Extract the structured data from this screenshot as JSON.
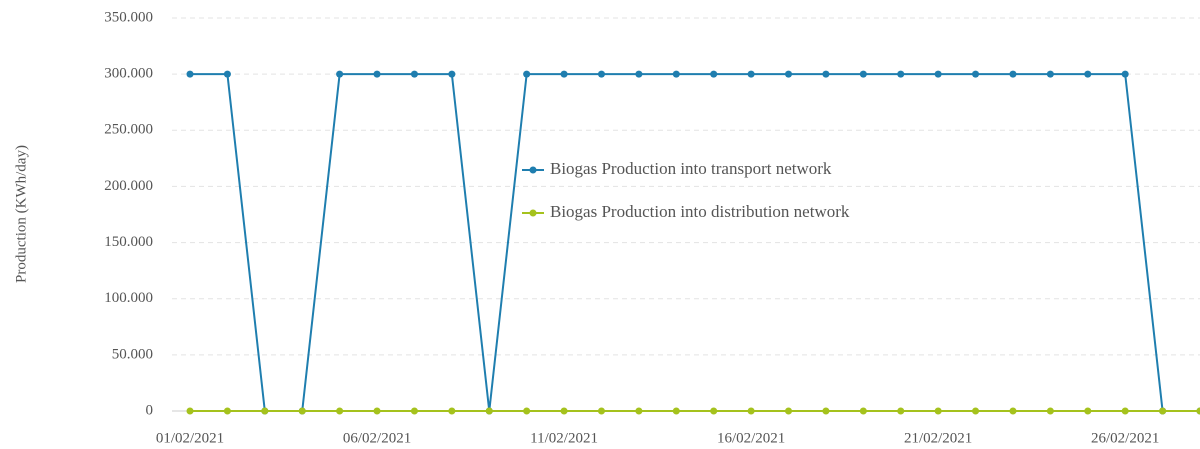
{
  "chart_data": {
    "type": "line",
    "y_label": "Production (KWh/day)",
    "categories": [
      "01/02/2021",
      null,
      null,
      null,
      null,
      "06/02/2021",
      null,
      null,
      null,
      null,
      "11/02/2021",
      null,
      null,
      null,
      null,
      "16/02/2021",
      null,
      null,
      null,
      null,
      "21/02/2021",
      null,
      null,
      null,
      null,
      "26/02/2021",
      null,
      null
    ],
    "series": [
      {
        "name": "Biogas Production into transport network",
        "color": "#1f7eaf",
        "values": [
          300000,
          300000,
          0,
          0,
          300000,
          300000,
          300000,
          300000,
          0,
          300000,
          300000,
          300000,
          300000,
          300000,
          300000,
          300000,
          300000,
          300000,
          300000,
          300000,
          300000,
          300000,
          300000,
          300000,
          300000,
          300000,
          0,
          0
        ]
      },
      {
        "name": "Biogas Production into distribution network",
        "color": "#a5c21d",
        "values": [
          0,
          0,
          0,
          0,
          0,
          0,
          0,
          0,
          0,
          0,
          0,
          0,
          0,
          0,
          0,
          0,
          0,
          0,
          0,
          0,
          0,
          0,
          0,
          0,
          0,
          0,
          0,
          0
        ]
      }
    ],
    "ylim": [
      0,
      350000
    ],
    "yticks": [
      0,
      {
        "value": 50000,
        "label": "50.000"
      },
      {
        "value": 100000,
        "label": "100.000"
      },
      {
        "value": 150000,
        "label": "150.000"
      },
      {
        "value": 200000,
        "label": "200.000"
      },
      {
        "value": 250000,
        "label": "250.000"
      },
      {
        "value": 300000,
        "label": "300.000"
      },
      {
        "value": 350000,
        "label": "350.000"
      }
    ],
    "grid": true,
    "legend": "center"
  }
}
